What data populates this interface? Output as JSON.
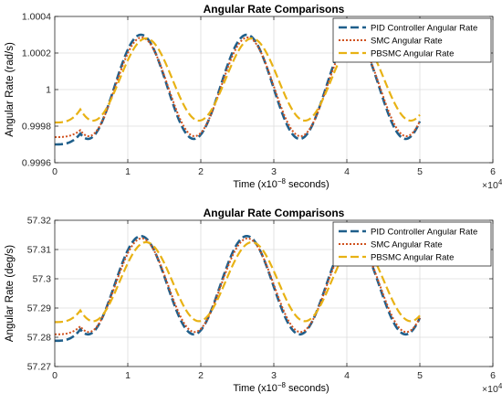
{
  "chart_data": [
    {
      "type": "line",
      "title": "Angular Rate Comparisons",
      "xlabel": "Time (x10^{-8} seconds)",
      "xlabel_parts": {
        "pre": "Time (x10",
        "sup": "−8",
        "post": " seconds)"
      },
      "ylabel": "Angular Rate (rad/s)",
      "x_exponent": {
        "base": "×10",
        "sup": "4"
      },
      "xlim": [
        0,
        6
      ],
      "ylim": [
        0.9996,
        1.0004
      ],
      "xticks": [
        0,
        1,
        2,
        3,
        4,
        5,
        6
      ],
      "xtick_labels": [
        "0",
        "1",
        "2",
        "3",
        "4",
        "5",
        "6"
      ],
      "yticks": [
        0.9996,
        0.9998,
        1.0,
        1.0002,
        1.0004
      ],
      "ytick_labels": [
        "0.9996",
        "0.9998",
        "1",
        "1.0002",
        "1.0004"
      ],
      "grid": true,
      "legend_position": "top-right",
      "model": {
        "x_start": 0.35,
        "x_end": 5.0,
        "period": 1.45
      },
      "series": [
        {
          "name": "PID Controller Angular Rate",
          "color": "#1f5f8b",
          "dash": "9,4",
          "width": 2.6,
          "y_init": 0.9997,
          "center": 1.000015,
          "amp": 0.000285,
          "peak_x": 1.18
        },
        {
          "name": "SMC Angular Rate",
          "color": "#d0521f",
          "dash": "2,2",
          "width": 2.0,
          "y_init": 0.99974,
          "center": 1.000015,
          "amp": 0.00027,
          "peak_x": 1.19
        },
        {
          "name": "PBSMC Angular Rate",
          "color": "#e8b214",
          "dash": "9,4",
          "width": 2.2,
          "y_init": 0.99982,
          "center": 1.000055,
          "amp": 0.000225,
          "peak_x": 1.25
        }
      ]
    },
    {
      "type": "line",
      "title": "Angular Rate Comparisons",
      "xlabel": "Time (x10^{-8} seconds)",
      "xlabel_parts": {
        "pre": "Time (x10",
        "sup": "−8",
        "post": " seconds)"
      },
      "ylabel": "Angular Rate (deg/s)",
      "x_exponent": {
        "base": "×10",
        "sup": "4"
      },
      "xlim": [
        0,
        6
      ],
      "ylim": [
        57.27,
        57.32
      ],
      "xticks": [
        0,
        1,
        2,
        3,
        4,
        5,
        6
      ],
      "xtick_labels": [
        "0",
        "1",
        "2",
        "3",
        "4",
        "5",
        "6"
      ],
      "yticks": [
        57.27,
        57.28,
        57.29,
        57.3,
        57.31,
        57.32
      ],
      "ytick_labels": [
        "57.27",
        "57.28",
        "57.29",
        "57.3",
        "57.31",
        "57.32"
      ],
      "grid": true,
      "legend_position": "top-right",
      "model": {
        "x_start": 0.35,
        "x_end": 5.0,
        "period": 1.45
      },
      "series": [
        {
          "name": "PID Controller Angular Rate",
          "color": "#1f5f8b",
          "dash": "9,4",
          "width": 2.6,
          "y_init": 57.2788,
          "center": 57.2978,
          "amp": 0.0168,
          "peak_x": 1.18
        },
        {
          "name": "SMC Angular Rate",
          "color": "#d0521f",
          "dash": "2,2",
          "width": 2.0,
          "y_init": 57.281,
          "center": 57.2978,
          "amp": 0.016,
          "peak_x": 1.19
        },
        {
          "name": "PBSMC Angular Rate",
          "color": "#e8b214",
          "dash": "9,4",
          "width": 2.2,
          "y_init": 57.2852,
          "center": 57.299,
          "amp": 0.0135,
          "peak_x": 1.25
        }
      ]
    }
  ]
}
